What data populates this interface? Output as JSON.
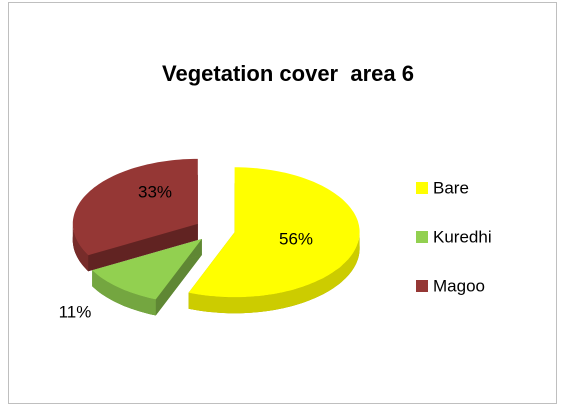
{
  "chart_data": {
    "type": "pie",
    "title": "Vegetation cover  area 6",
    "categories": [
      "Bare",
      "Kuredhi",
      "Magoo"
    ],
    "values": [
      56,
      11,
      33
    ],
    "value_labels": [
      "56%",
      "11%",
      "33%"
    ],
    "colors": [
      "#ffff00",
      "#92d050",
      "#953735"
    ],
    "legend": "right"
  }
}
